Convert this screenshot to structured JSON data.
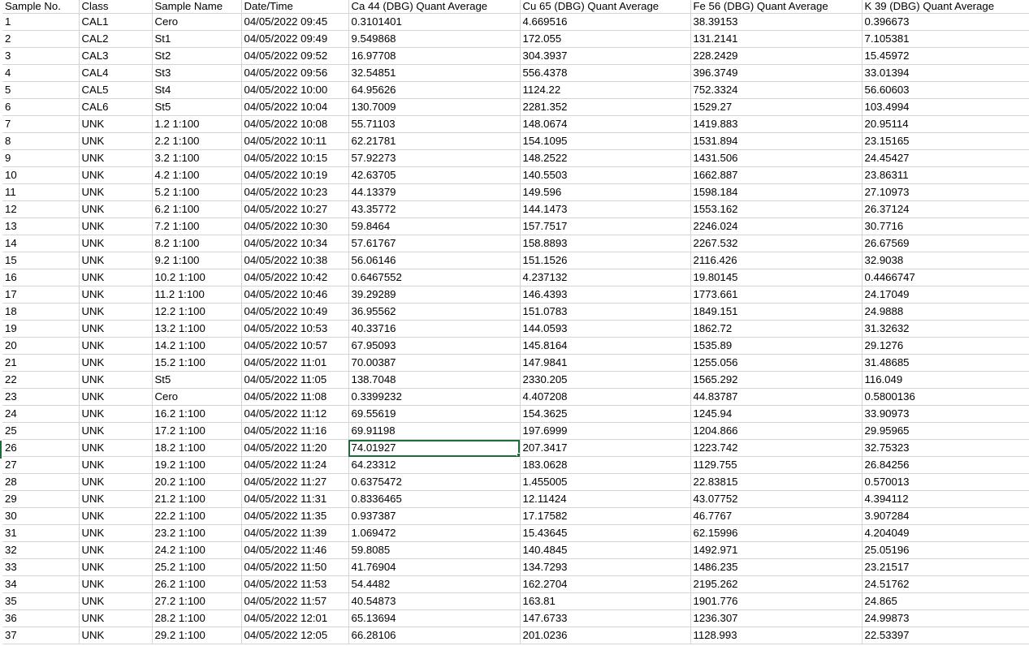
{
  "headers": [
    "Sample No.",
    "Class",
    "Sample Name",
    "Date/Time",
    "Ca 44 (DBG) Quant Average",
    "Cu 65 (DBG) Quant Average",
    "Fe 56 (DBG) Quant Average",
    "K 39 (DBG) Quant Average"
  ],
  "selected_cell": {
    "row": 26,
    "column": "Ca 44 (DBG) Quant Average"
  },
  "accent_color": "#1e6b3c",
  "rows": [
    [
      "1",
      "CAL1",
      "Cero",
      "04/05/2022 09:45",
      "0.3101401",
      "4.669516",
      "38.39153",
      "0.396673"
    ],
    [
      "2",
      "CAL2",
      "St1",
      "04/05/2022 09:49",
      "9.549868",
      "172.055",
      "131.2141",
      "7.105381"
    ],
    [
      "3",
      "CAL3",
      "St2",
      "04/05/2022 09:52",
      "16.97708",
      "304.3937",
      "228.2429",
      "15.45972"
    ],
    [
      "4",
      "CAL4",
      "St3",
      "04/05/2022 09:56",
      "32.54851",
      "556.4378",
      "396.3749",
      "33.01394"
    ],
    [
      "5",
      "CAL5",
      "St4",
      "04/05/2022 10:00",
      "64.95626",
      "1124.22",
      "752.3324",
      "56.60603"
    ],
    [
      "6",
      "CAL6",
      "St5",
      "04/05/2022 10:04",
      "130.7009",
      "2281.352",
      "1529.27",
      "103.4994"
    ],
    [
      "7",
      "UNK",
      "1.2 1:100",
      "04/05/2022 10:08",
      "55.71103",
      "148.0674",
      "1419.883",
      "20.95114"
    ],
    [
      "8",
      "UNK",
      "2.2 1:100",
      "04/05/2022 10:11",
      "62.21781",
      "154.1095",
      "1531.894",
      "23.15165"
    ],
    [
      "9",
      "UNK",
      "3.2 1:100",
      "04/05/2022 10:15",
      "57.92273",
      "148.2522",
      "1431.506",
      "24.45427"
    ],
    [
      "10",
      "UNK",
      "4.2 1:100",
      "04/05/2022 10:19",
      "42.63705",
      "140.5503",
      "1662.887",
      "23.86311"
    ],
    [
      "11",
      "UNK",
      "5.2 1:100",
      "04/05/2022 10:23",
      "44.13379",
      "149.596",
      "1598.184",
      "27.10973"
    ],
    [
      "12",
      "UNK",
      "6.2 1:100",
      "04/05/2022 10:27",
      "43.35772",
      "144.1473",
      "1553.162",
      "26.37124"
    ],
    [
      "13",
      "UNK",
      "7.2 1:100",
      "04/05/2022 10:30",
      "59.8464",
      "157.7517",
      "2246.024",
      "30.7716"
    ],
    [
      "14",
      "UNK",
      "8.2 1:100",
      "04/05/2022 10:34",
      "57.61767",
      "158.8893",
      "2267.532",
      "26.67569"
    ],
    [
      "15",
      "UNK",
      "9.2 1:100",
      "04/05/2022 10:38",
      "56.06146",
      "151.1526",
      "2116.426",
      "32.9038"
    ],
    [
      "16",
      "UNK",
      "10.2 1:100",
      "04/05/2022 10:42",
      "0.6467552",
      "4.237132",
      "19.80145",
      "0.4466747"
    ],
    [
      "17",
      "UNK",
      "11.2 1:100",
      "04/05/2022 10:46",
      "39.29289",
      "146.4393",
      "1773.661",
      "24.17049"
    ],
    [
      "18",
      "UNK",
      "12.2 1:100",
      "04/05/2022 10:49",
      "36.95562",
      "151.0783",
      "1849.151",
      "24.9888"
    ],
    [
      "19",
      "UNK",
      "13.2 1:100",
      "04/05/2022 10:53",
      "40.33716",
      "144.0593",
      "1862.72",
      "31.32632"
    ],
    [
      "20",
      "UNK",
      "14.2 1:100",
      "04/05/2022 10:57",
      "67.95093",
      "145.8164",
      "1535.89",
      "29.1276"
    ],
    [
      "21",
      "UNK",
      "15.2 1:100",
      "04/05/2022 11:01",
      "70.00387",
      "147.9841",
      "1255.056",
      "31.48685"
    ],
    [
      "22",
      "UNK",
      "St5",
      "04/05/2022 11:05",
      "138.7048",
      "2330.205",
      "1565.292",
      "116.049"
    ],
    [
      "23",
      "UNK",
      "Cero",
      "04/05/2022 11:08",
      "0.3399232",
      "4.407208",
      "44.83787",
      "0.5800136"
    ],
    [
      "24",
      "UNK",
      "16.2 1:100",
      "04/05/2022 11:12",
      "69.55619",
      "154.3625",
      "1245.94",
      "33.90973"
    ],
    [
      "25",
      "UNK",
      "17.2 1:100",
      "04/05/2022 11:16",
      "69.91198",
      "197.6999",
      "1204.866",
      "29.95965"
    ],
    [
      "26",
      "UNK",
      "18.2 1:100",
      "04/05/2022 11:20",
      "74.01927",
      "207.3417",
      "1223.742",
      "32.75323"
    ],
    [
      "27",
      "UNK",
      "19.2 1:100",
      "04/05/2022 11:24",
      "64.23312",
      "183.0628",
      "1129.755",
      "26.84256"
    ],
    [
      "28",
      "UNK",
      "20.2 1:100",
      "04/05/2022 11:27",
      "0.6375472",
      "1.455005",
      "22.83815",
      "0.570013"
    ],
    [
      "29",
      "UNK",
      "21.2 1:100",
      "04/05/2022 11:31",
      "0.8336465",
      "12.11424",
      "43.07752",
      "4.394112"
    ],
    [
      "30",
      "UNK",
      "22.2 1:100",
      "04/05/2022 11:35",
      "0.937387",
      "17.17582",
      "46.7767",
      "3.907284"
    ],
    [
      "31",
      "UNK",
      "23.2 1:100",
      "04/05/2022 11:39",
      "1.069472",
      "15.43645",
      "62.15996",
      "4.204049"
    ],
    [
      "32",
      "UNK",
      "24.2 1:100",
      "04/05/2022 11:46",
      "59.8085",
      "140.4845",
      "1492.971",
      "25.05196"
    ],
    [
      "33",
      "UNK",
      "25.2 1:100",
      "04/05/2022 11:50",
      "41.76904",
      "134.7293",
      "1486.235",
      "23.21517"
    ],
    [
      "34",
      "UNK",
      "26.2 1:100",
      "04/05/2022 11:53",
      "54.4482",
      "162.2704",
      "2195.262",
      "24.51762"
    ],
    [
      "35",
      "UNK",
      "27.2 1:100",
      "04/05/2022 11:57",
      "40.54873",
      "163.81",
      "1901.776",
      "24.865"
    ],
    [
      "36",
      "UNK",
      "28.2 1:100",
      "04/05/2022 12:01",
      "65.13694",
      "147.6733",
      "1236.307",
      "24.99873"
    ],
    [
      "37",
      "UNK",
      "29.2 1:100",
      "04/05/2022 12:05",
      "66.28106",
      "201.0236",
      "1128.993",
      "22.53397"
    ]
  ]
}
